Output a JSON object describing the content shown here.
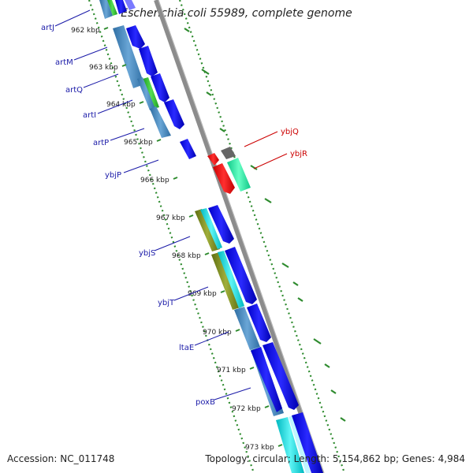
{
  "title": "Escherichia coli 55989, complete genome",
  "footer": {
    "accession": "Accession: NC_011748",
    "summary": "Topology: circular; Length: 5,154,862 bp; Genes: 4,984"
  },
  "colors": {
    "backbone": "#8c8c8c",
    "ruler_dots": "#2e8b2e",
    "label_forward": "#1a1aa8",
    "label_reverse": "#cc0000",
    "cds_forward": "#0000ee",
    "cds_reverse": "#ee0000",
    "feature_steelblue": "#4a85b8",
    "feature_green": "#33bb33",
    "feature_olive": "#7a8a20",
    "feature_cyan": "#00d8d8",
    "feature_mint": "#22e8a0",
    "feature_gray": "#666666"
  },
  "ticks": [
    "962 kbp",
    "963 kbp",
    "964 kbp",
    "965 kbp",
    "966 kbp",
    "967 kbp",
    "968 kbp",
    "969 kbp",
    "970 kbp",
    "971 kbp",
    "972 kbp",
    "973 kbp"
  ],
  "genes_forward": [
    "artJ",
    "artM",
    "artQ",
    "artI",
    "artP",
    "ybjP",
    "ybjS",
    "ybjT",
    "ltaE",
    "poxB"
  ],
  "genes_reverse": [
    "ybjQ",
    "ybjR"
  ]
}
